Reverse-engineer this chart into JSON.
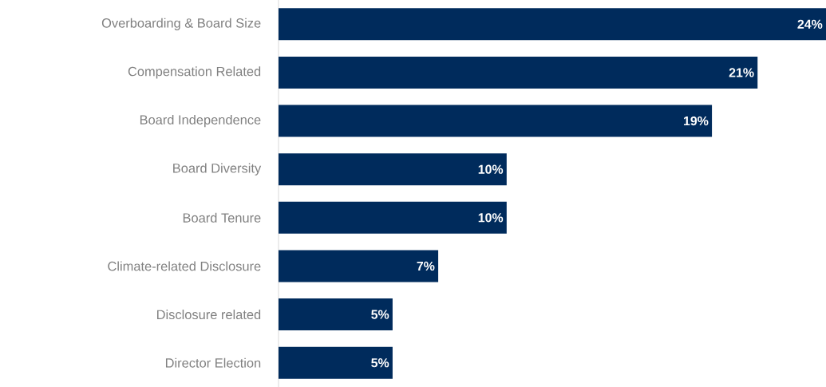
{
  "chart_data": {
    "type": "bar",
    "orientation": "horizontal",
    "categories": [
      "Overboarding & Board Size",
      "Compensation Related",
      "Board Independence",
      "Board Diversity",
      "Board Tenure",
      "Climate-related Disclosure",
      "Disclosure related",
      "Director Election"
    ],
    "values": [
      24,
      21,
      19,
      10,
      10,
      7,
      5,
      5
    ],
    "value_labels": [
      "24%",
      "21%",
      "19%",
      "10%",
      "10%",
      "7%",
      "5%",
      "5%"
    ],
    "color": "#002b5c"
  }
}
